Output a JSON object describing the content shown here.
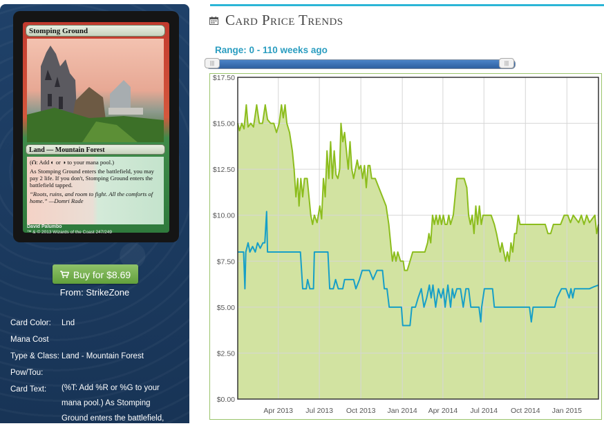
{
  "card": {
    "name": "Stomping Ground",
    "type_line": "Land — Mountain Forest",
    "rules_text_1": "(⮉: Add ◐ or ◑ to your mana pool.)",
    "rules_text_2": "As Stomping Ground enters the battlefield, you may pay 2 life. If you don't, Stomping Ground enters the battlefield tapped.",
    "flavor": "“Roots, ruins, and room to fight. All the comforts of home.” —Domri Rade",
    "artist": "David Palumbo",
    "copyright": "™ & © 2013 Wizards of the Coast 247/249"
  },
  "buy": {
    "label": "Buy for $8.69",
    "icon": "cart-icon",
    "from_label": "From: StrikeZone"
  },
  "details": {
    "card_color_label": "Card Color:",
    "card_color_value": "Lnd",
    "mana_cost_label": "Mana Cost",
    "mana_cost_value": "",
    "type_class_label": "Type & Class:",
    "type_class_value": "Land - Mountain Forest",
    "pow_tou_label": "Pow/Tou:",
    "pow_tou_value": "",
    "card_text_label": "Card Text:",
    "card_text_value": "(%T: Add %R or %G to your mana pool.) As Stomping Ground enters the battlefield,"
  },
  "trends": {
    "title": "Card Price Trends",
    "icon": "calendar-icon",
    "range_label": "Range: 0 - 110 weeks ago",
    "slider": {
      "min_weeks_ago": 0,
      "max_weeks_ago": 110
    }
  },
  "colors": {
    "accent": "#2bb5d6",
    "green_line": "#8cbd1d",
    "green_fill": "#d2e3a1",
    "blue_line": "#169fc7"
  },
  "chart_data": {
    "type": "area",
    "xlabel": "",
    "ylabel": "",
    "x_ticks": [
      "Apr 2013",
      "Jul 2013",
      "Oct 2013",
      "Jan 2014",
      "Apr 2014",
      "Jul 2014",
      "Oct 2014",
      "Jan 2015"
    ],
    "y_ticks": [
      "$0.00",
      "$2.50",
      "$5.00",
      "$7.50",
      "$10.00",
      "$12.50",
      "$15.00",
      "$17.50"
    ],
    "ylim": [
      0,
      17.5
    ],
    "xlim": [
      "2013-01-01",
      "2015-03-12"
    ],
    "grid": true,
    "series": [
      {
        "style": "area",
        "points": [
          [
            "2013-01-01",
            15.0
          ],
          [
            "2013-01-05",
            14.6
          ],
          [
            "2013-01-10",
            15.0
          ],
          [
            "2013-01-15",
            14.7
          ],
          [
            "2013-01-20",
            16.0
          ],
          [
            "2013-01-24",
            14.8
          ],
          [
            "2013-01-30",
            15.0
          ],
          [
            "2013-02-05",
            14.8
          ],
          [
            "2013-02-12",
            16.0
          ],
          [
            "2013-02-18",
            15.0
          ],
          [
            "2013-02-25",
            15.0
          ],
          [
            "2013-03-03",
            16.0
          ],
          [
            "2013-03-08",
            15.2
          ],
          [
            "2013-03-15",
            15.0
          ],
          [
            "2013-03-22",
            15.0
          ],
          [
            "2013-03-28",
            14.5
          ],
          [
            "2013-04-03",
            15.0
          ],
          [
            "2013-04-08",
            16.0
          ],
          [
            "2013-04-12",
            15.3
          ],
          [
            "2013-04-16",
            16.0
          ],
          [
            "2013-04-20",
            15.0
          ],
          [
            "2013-04-26",
            14.5
          ],
          [
            "2013-05-02",
            13.5
          ],
          [
            "2013-05-06",
            12.5
          ],
          [
            "2013-05-10",
            11.0
          ],
          [
            "2013-05-14",
            12.0
          ],
          [
            "2013-05-17",
            10.5
          ],
          [
            "2013-05-21",
            12.0
          ],
          [
            "2013-05-25",
            11.0
          ],
          [
            "2013-05-29",
            12.0
          ],
          [
            "2013-06-04",
            12.0
          ],
          [
            "2013-06-08",
            11.0
          ],
          [
            "2013-06-12",
            10.0
          ],
          [
            "2013-06-16",
            9.5
          ],
          [
            "2013-06-20",
            10.0
          ],
          [
            "2013-06-26",
            9.6
          ],
          [
            "2013-07-02",
            10.5
          ],
          [
            "2013-07-06",
            9.8
          ],
          [
            "2013-07-10",
            12.0
          ],
          [
            "2013-07-14",
            11.0
          ],
          [
            "2013-07-18",
            13.5
          ],
          [
            "2013-07-22",
            12.0
          ],
          [
            "2013-07-26",
            14.0
          ],
          [
            "2013-07-30",
            12.0
          ],
          [
            "2013-08-03",
            13.5
          ],
          [
            "2013-08-07",
            12.2
          ],
          [
            "2013-08-11",
            12.0
          ],
          [
            "2013-08-15",
            12.5
          ],
          [
            "2013-08-18",
            15.0
          ],
          [
            "2013-08-22",
            14.0
          ],
          [
            "2013-08-26",
            14.5
          ],
          [
            "2013-08-30",
            13.5
          ],
          [
            "2013-09-03",
            12.5
          ],
          [
            "2013-09-07",
            14.0
          ],
          [
            "2013-09-11",
            12.5
          ],
          [
            "2013-09-15",
            12.0
          ],
          [
            "2013-09-19",
            12.5
          ],
          [
            "2013-09-23",
            13.0
          ],
          [
            "2013-09-27",
            12.5
          ],
          [
            "2013-10-01",
            12.7
          ],
          [
            "2013-10-05",
            12.0
          ],
          [
            "2013-10-09",
            12.7
          ],
          [
            "2013-10-13",
            11.5
          ],
          [
            "2013-10-17",
            12.7
          ],
          [
            "2013-10-21",
            12.7
          ],
          [
            "2013-10-25",
            12.0
          ],
          [
            "2013-11-02",
            12.0
          ],
          [
            "2013-11-10",
            11.5
          ],
          [
            "2013-11-18",
            11.0
          ],
          [
            "2013-11-26",
            10.5
          ],
          [
            "2013-12-02",
            9.5
          ],
          [
            "2013-12-06",
            8.5
          ],
          [
            "2013-12-10",
            7.5
          ],
          [
            "2013-12-14",
            8.0
          ],
          [
            "2013-12-18",
            7.5
          ],
          [
            "2013-12-22",
            8.0
          ],
          [
            "2013-12-28",
            7.5
          ],
          [
            "2014-01-03",
            7.5
          ],
          [
            "2014-01-06",
            7.0
          ],
          [
            "2014-01-12",
            7.0
          ],
          [
            "2014-01-18",
            7.5
          ],
          [
            "2014-01-24",
            8.0
          ],
          [
            "2014-02-01",
            8.0
          ],
          [
            "2014-02-10",
            8.0
          ],
          [
            "2014-02-20",
            8.0
          ],
          [
            "2014-02-26",
            8.5
          ],
          [
            "2014-03-01",
            9.0
          ],
          [
            "2014-03-05",
            8.5
          ],
          [
            "2014-03-09",
            10.0
          ],
          [
            "2014-03-13",
            9.5
          ],
          [
            "2014-03-17",
            10.0
          ],
          [
            "2014-03-21",
            9.5
          ],
          [
            "2014-03-25",
            10.0
          ],
          [
            "2014-03-29",
            9.5
          ],
          [
            "2014-04-02",
            10.0
          ],
          [
            "2014-04-06",
            9.5
          ],
          [
            "2014-04-10",
            9.5
          ],
          [
            "2014-04-14",
            10.0
          ],
          [
            "2014-04-18",
            9.5
          ],
          [
            "2014-04-24",
            10.0
          ],
          [
            "2014-05-02",
            12.0
          ],
          [
            "2014-05-10",
            12.0
          ],
          [
            "2014-05-18",
            12.0
          ],
          [
            "2014-05-24",
            11.5
          ],
          [
            "2014-05-28",
            10.0
          ],
          [
            "2014-06-01",
            9.5
          ],
          [
            "2014-06-05",
            10.0
          ],
          [
            "2014-06-09",
            9.0
          ],
          [
            "2014-06-13",
            10.5
          ],
          [
            "2014-06-17",
            9.5
          ],
          [
            "2014-06-21",
            10.5
          ],
          [
            "2014-06-25",
            9.5
          ],
          [
            "2014-06-29",
            10.0
          ],
          [
            "2014-07-03",
            10.0
          ],
          [
            "2014-07-10",
            10.0
          ],
          [
            "2014-07-17",
            10.0
          ],
          [
            "2014-07-24",
            9.5
          ],
          [
            "2014-07-29",
            9.0
          ],
          [
            "2014-08-02",
            8.5
          ],
          [
            "2014-08-06",
            8.0
          ],
          [
            "2014-08-10",
            8.5
          ],
          [
            "2014-08-14",
            8.0
          ],
          [
            "2014-08-18",
            7.5
          ],
          [
            "2014-08-22",
            8.0
          ],
          [
            "2014-08-26",
            7.5
          ],
          [
            "2014-08-30",
            8.5
          ],
          [
            "2014-09-03",
            8.0
          ],
          [
            "2014-09-07",
            9.0
          ],
          [
            "2014-09-11",
            9.0
          ],
          [
            "2014-09-15",
            10.0
          ],
          [
            "2014-09-19",
            9.5
          ],
          [
            "2014-09-25",
            9.5
          ],
          [
            "2014-10-05",
            9.5
          ],
          [
            "2014-10-15",
            9.5
          ],
          [
            "2014-10-25",
            9.5
          ],
          [
            "2014-11-04",
            9.5
          ],
          [
            "2014-11-14",
            9.5
          ],
          [
            "2014-11-20",
            9.0
          ],
          [
            "2014-11-26",
            9.0
          ],
          [
            "2014-12-02",
            9.5
          ],
          [
            "2014-12-10",
            9.5
          ],
          [
            "2014-12-18",
            9.5
          ],
          [
            "2014-12-26",
            10.0
          ],
          [
            "2015-01-03",
            10.0
          ],
          [
            "2015-01-09",
            9.6
          ],
          [
            "2015-01-15",
            10.0
          ],
          [
            "2015-01-21",
            9.8
          ],
          [
            "2015-01-27",
            9.6
          ],
          [
            "2015-02-02",
            10.0
          ],
          [
            "2015-02-08",
            9.5
          ],
          [
            "2015-02-14",
            10.0
          ],
          [
            "2015-02-20",
            9.6
          ],
          [
            "2015-02-26",
            9.8
          ],
          [
            "2015-03-04",
            10.0
          ],
          [
            "2015-03-08",
            9.0
          ],
          [
            "2015-03-12",
            9.5
          ]
        ]
      },
      {
        "style": "line",
        "points": [
          [
            "2013-01-01",
            8.0
          ],
          [
            "2013-01-14",
            8.0
          ],
          [
            "2013-01-17",
            6.0
          ],
          [
            "2013-01-19",
            8.0
          ],
          [
            "2013-01-24",
            8.5
          ],
          [
            "2013-01-28",
            8.0
          ],
          [
            "2013-02-03",
            8.3
          ],
          [
            "2013-02-09",
            8.0
          ],
          [
            "2013-02-14",
            8.5
          ],
          [
            "2013-02-20",
            8.2
          ],
          [
            "2013-02-26",
            8.5
          ],
          [
            "2013-03-02",
            8.5
          ],
          [
            "2013-03-06",
            10.2
          ],
          [
            "2013-03-08",
            8.0
          ],
          [
            "2013-03-20",
            8.0
          ],
          [
            "2013-04-10",
            8.0
          ],
          [
            "2013-05-01",
            8.0
          ],
          [
            "2013-05-20",
            8.0
          ],
          [
            "2013-05-25",
            6.0
          ],
          [
            "2013-06-02",
            6.0
          ],
          [
            "2013-06-05",
            6.5
          ],
          [
            "2013-06-10",
            6.0
          ],
          [
            "2013-06-18",
            6.0
          ],
          [
            "2013-06-20",
            8.0
          ],
          [
            "2013-07-01",
            8.0
          ],
          [
            "2013-07-12",
            8.0
          ],
          [
            "2013-07-20",
            8.0
          ],
          [
            "2013-07-24",
            6.0
          ],
          [
            "2013-08-01",
            6.0
          ],
          [
            "2013-08-06",
            6.5
          ],
          [
            "2013-08-12",
            6.0
          ],
          [
            "2013-08-22",
            6.0
          ],
          [
            "2013-08-26",
            6.5
          ],
          [
            "2013-09-15",
            6.5
          ],
          [
            "2013-09-20",
            6.0
          ],
          [
            "2013-09-28",
            6.5
          ],
          [
            "2013-10-04",
            7.0
          ],
          [
            "2013-10-20",
            7.0
          ],
          [
            "2013-10-28",
            6.5
          ],
          [
            "2013-11-06",
            7.0
          ],
          [
            "2013-11-18",
            7.0
          ],
          [
            "2013-11-22",
            6.0
          ],
          [
            "2013-11-28",
            6.0
          ],
          [
            "2013-12-03",
            5.0
          ],
          [
            "2013-12-15",
            5.0
          ],
          [
            "2013-12-30",
            5.0
          ],
          [
            "2014-01-02",
            4.0
          ],
          [
            "2014-01-18",
            4.0
          ],
          [
            "2014-01-22",
            5.0
          ],
          [
            "2014-01-30",
            5.0
          ],
          [
            "2014-02-05",
            5.5
          ],
          [
            "2014-02-12",
            6.0
          ],
          [
            "2014-02-18",
            5.0
          ],
          [
            "2014-02-24",
            5.5
          ],
          [
            "2014-03-02",
            6.2
          ],
          [
            "2014-03-06",
            5.5
          ],
          [
            "2014-03-10",
            6.2
          ],
          [
            "2014-03-16",
            5.0
          ],
          [
            "2014-03-22",
            6.0
          ],
          [
            "2014-03-28",
            5.5
          ],
          [
            "2014-04-02",
            6.0
          ],
          [
            "2014-04-06",
            5.0
          ],
          [
            "2014-04-12",
            6.2
          ],
          [
            "2014-04-18",
            5.0
          ],
          [
            "2014-04-22",
            6.0
          ],
          [
            "2014-04-26",
            5.5
          ],
          [
            "2014-05-02",
            6.0
          ],
          [
            "2014-05-10",
            6.0
          ],
          [
            "2014-05-16",
            5.0
          ],
          [
            "2014-05-22",
            6.0
          ],
          [
            "2014-05-28",
            6.0
          ],
          [
            "2014-06-02",
            5.0
          ],
          [
            "2014-06-20",
            5.0
          ],
          [
            "2014-06-24",
            4.2
          ],
          [
            "2014-06-26",
            5.0
          ],
          [
            "2014-07-02",
            6.0
          ],
          [
            "2014-07-15",
            6.0
          ],
          [
            "2014-07-20",
            6.0
          ],
          [
            "2014-07-24",
            5.0
          ],
          [
            "2014-08-10",
            5.0
          ],
          [
            "2014-09-01",
            5.0
          ],
          [
            "2014-09-20",
            5.0
          ],
          [
            "2014-10-10",
            5.0
          ],
          [
            "2014-10-14",
            4.2
          ],
          [
            "2014-10-18",
            5.0
          ],
          [
            "2014-11-01",
            5.0
          ],
          [
            "2014-11-20",
            5.0
          ],
          [
            "2014-12-05",
            5.0
          ],
          [
            "2014-12-10",
            5.5
          ],
          [
            "2014-12-20",
            6.0
          ],
          [
            "2014-12-30",
            6.0
          ],
          [
            "2015-01-06",
            5.5
          ],
          [
            "2015-01-10",
            6.0
          ],
          [
            "2015-01-14",
            5.5
          ],
          [
            "2015-01-18",
            6.0
          ],
          [
            "2015-01-24",
            6.0
          ],
          [
            "2015-02-01",
            6.0
          ],
          [
            "2015-02-10",
            6.0
          ],
          [
            "2015-02-20",
            6.0
          ],
          [
            "2015-03-01",
            6.1
          ],
          [
            "2015-03-12",
            6.2
          ]
        ]
      }
    ]
  }
}
